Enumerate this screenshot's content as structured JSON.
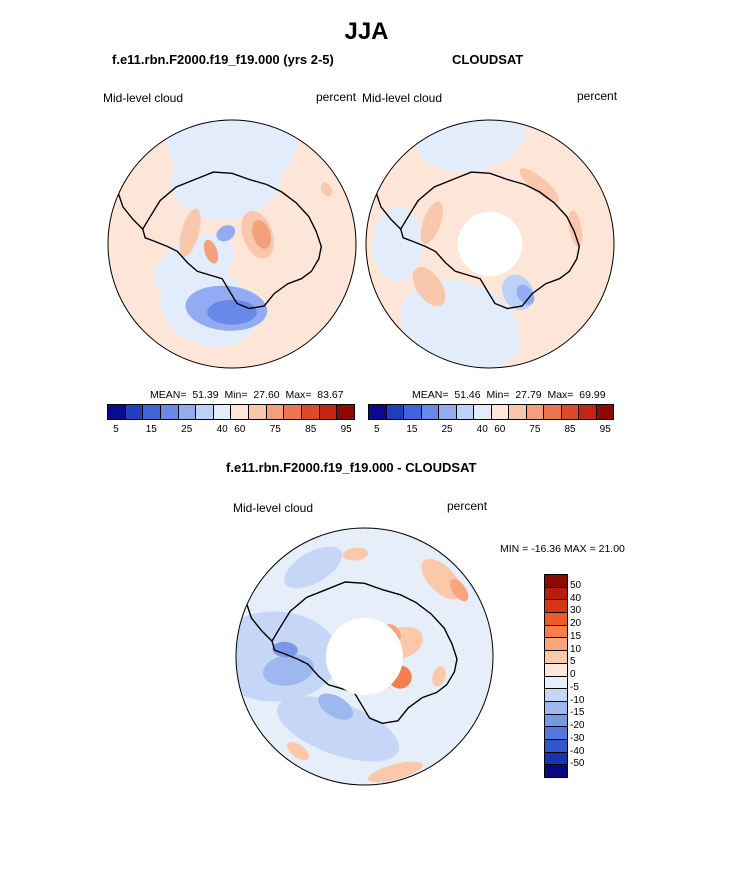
{
  "page": {
    "title": "JJA"
  },
  "palettes": {
    "abs": [
      "#0a0a8c",
      "#1f3fbf",
      "#4162d8",
      "#6a88e8",
      "#92abf2",
      "#bcd1f9",
      "#e2ecfb",
      "#fde6d8",
      "#f9c7ac",
      "#f4a07c",
      "#ec7551",
      "#dd4a2a",
      "#c22512",
      "#8c0a04"
    ],
    "diff": [
      "#8a0a06",
      "#b61d0f",
      "#d63618",
      "#ee5a2a",
      "#f47e4d",
      "#f8a47c",
      "#fbc9a9",
      "#fde7d8",
      "#e6eef9",
      "#c6d6f6",
      "#9db7ef",
      "#7898e6",
      "#5477dc",
      "#3157cd",
      "#1735ad",
      "#0a0a80"
    ]
  },
  "chart_data": [
    {
      "id": "model",
      "type": "heatmap",
      "title": "f.e11.rbn.F2000.f19_f19.000 (yrs 2-5)",
      "variable_label": "Mid-level cloud",
      "units_label": "percent",
      "projection": "south-polar-stereographic",
      "stats": {
        "mean_label": "MEAN=",
        "mean": "51.39",
        "min_label": "Min=",
        "min": "27.60",
        "max_label": "Max=",
        "max": "83.67"
      },
      "colorbar": {
        "orientation": "horizontal",
        "tick_labels": [
          "5",
          "15",
          "25",
          "40",
          "60",
          "75",
          "85",
          "95"
        ]
      },
      "patches": [
        {
          "color": 6,
          "r": 0.98,
          "ang": 90,
          "rx": 0.55,
          "ry": 0.62
        },
        {
          "color": 6,
          "r": 0.55,
          "ang": 95,
          "rx": 0.45,
          "ry": 0.35
        },
        {
          "color": 6,
          "r": 0.35,
          "ang": 210,
          "rx": 0.22,
          "ry": 0.35
        },
        {
          "color": 6,
          "r": 0.55,
          "ang": 250,
          "rx": 0.4,
          "ry": 0.3
        },
        {
          "color": 4,
          "r": 0.52,
          "ang": 265,
          "rx": 0.33,
          "ry": 0.18
        },
        {
          "color": 3,
          "r": 0.55,
          "ang": 270,
          "rx": 0.2,
          "ry": 0.1
        },
        {
          "color": 8,
          "r": 0.22,
          "ang": 20,
          "rx": 0.2,
          "ry": 0.12
        },
        {
          "color": 9,
          "r": 0.25,
          "ang": 18,
          "rx": 0.12,
          "ry": 0.07
        },
        {
          "color": 8,
          "r": 0.35,
          "ang": 165,
          "rx": 0.2,
          "ry": 0.07
        },
        {
          "color": 9,
          "r": 0.18,
          "ang": 200,
          "rx": 0.1,
          "ry": 0.05
        },
        {
          "color": 4,
          "r": 0.1,
          "ang": 120,
          "rx": 0.08,
          "ry": 0.06
        },
        {
          "color": 7,
          "r": 0.82,
          "ang": 40,
          "rx": 0.12,
          "ry": 0.06
        },
        {
          "color": 8,
          "r": 0.88,
          "ang": 30,
          "rx": 0.06,
          "ry": 0.04
        }
      ],
      "hole": 0
    },
    {
      "id": "obs",
      "type": "heatmap",
      "title": "CLOUDSAT",
      "variable_label": "Mid-level cloud",
      "units_label": "percent",
      "projection": "south-polar-stereographic",
      "stats": {
        "mean_label": "MEAN=",
        "mean": "51.46",
        "min_label": "Min=",
        "min": "27.79",
        "max_label": "Max=",
        "max": "69.99"
      },
      "colorbar": {
        "orientation": "horizontal",
        "tick_labels": [
          "5",
          "15",
          "25",
          "40",
          "60",
          "75",
          "85",
          "95"
        ]
      },
      "patches": [
        {
          "color": 6,
          "r": 0.9,
          "ang": 100,
          "rx": 0.45,
          "ry": 0.3
        },
        {
          "color": 6,
          "r": 0.7,
          "ang": 250,
          "rx": 0.5,
          "ry": 0.35
        },
        {
          "color": 6,
          "r": 0.75,
          "ang": 180,
          "rx": 0.3,
          "ry": 0.2
        },
        {
          "color": 5,
          "r": 0.45,
          "ang": 300,
          "rx": 0.12,
          "ry": 0.15
        },
        {
          "color": 4,
          "r": 0.5,
          "ang": 305,
          "rx": 0.06,
          "ry": 0.09
        },
        {
          "color": 8,
          "r": 0.5,
          "ang": 160,
          "rx": 0.18,
          "ry": 0.07
        },
        {
          "color": 8,
          "r": 0.62,
          "ang": 50,
          "rx": 0.2,
          "ry": 0.06
        },
        {
          "color": 8,
          "r": 0.7,
          "ang": 10,
          "rx": 0.15,
          "ry": 0.05
        },
        {
          "color": 8,
          "r": 0.6,
          "ang": 215,
          "rx": 0.18,
          "ry": 0.1
        }
      ],
      "hole": 0.26
    },
    {
      "id": "diff",
      "type": "heatmap",
      "title": "f.e11.rbn.F2000.f19_f19.000 - CLOUDSAT",
      "variable_label": "Mid-level cloud",
      "units_label": "percent",
      "projection": "south-polar-stereographic",
      "stats": {
        "text": "MIN = -16.36 MAX =  21.00"
      },
      "colorbar": {
        "orientation": "vertical",
        "tick_labels": [
          "50",
          "40",
          "30",
          "20",
          "15",
          "10",
          "5",
          "0",
          "-5",
          "-10",
          "-15",
          "-20",
          "-30",
          "-40",
          "-50"
        ]
      },
      "patches": [
        {
          "color": 9,
          "r": 0.7,
          "ang": 180,
          "rx": 0.35,
          "ry": 0.5
        },
        {
          "color": 9,
          "r": 0.6,
          "ang": 250,
          "rx": 0.5,
          "ry": 0.2
        },
        {
          "color": 10,
          "r": 0.6,
          "ang": 190,
          "rx": 0.12,
          "ry": 0.2
        },
        {
          "color": 10,
          "r": 0.45,
          "ang": 240,
          "rx": 0.15,
          "ry": 0.08
        },
        {
          "color": 11,
          "r": 0.62,
          "ang": 175,
          "rx": 0.06,
          "ry": 0.1
        },
        {
          "color": 9,
          "r": 0.8,
          "ang": 120,
          "rx": 0.25,
          "ry": 0.12
        },
        {
          "color": 6,
          "r": 0.3,
          "ang": 20,
          "rx": 0.12,
          "ry": 0.18
        },
        {
          "color": 4,
          "r": 0.32,
          "ang": 330,
          "rx": 0.09,
          "ry": 0.09
        },
        {
          "color": 5,
          "r": 0.28,
          "ang": 40,
          "rx": 0.08,
          "ry": 0.06
        },
        {
          "color": 6,
          "r": 0.85,
          "ang": 45,
          "rx": 0.2,
          "ry": 0.1
        },
        {
          "color": 5,
          "r": 0.9,
          "ang": 35,
          "rx": 0.1,
          "ry": 0.05
        },
        {
          "color": 6,
          "r": 0.93,
          "ang": 285,
          "rx": 0.22,
          "ry": 0.06
        },
        {
          "color": 6,
          "r": 0.9,
          "ang": 235,
          "rx": 0.1,
          "ry": 0.05
        },
        {
          "color": 6,
          "r": 0.8,
          "ang": 95,
          "rx": 0.1,
          "ry": 0.05
        },
        {
          "color": 6,
          "r": 0.6,
          "ang": 345,
          "rx": 0.08,
          "ry": 0.05
        }
      ],
      "hole": 0.3
    }
  ]
}
